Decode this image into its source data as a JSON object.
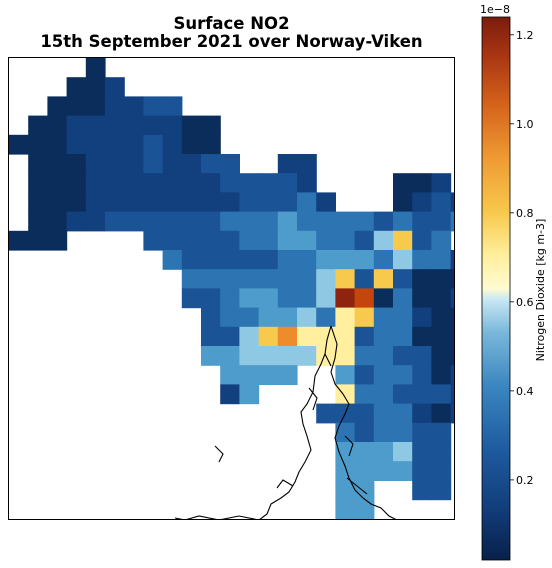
{
  "chart_data": {
    "type": "heatmap",
    "title_line1": "Surface NO2",
    "title_line2": "15th September 2021 over Norway-Viken",
    "colorbar": {
      "label": "Nitrogen Dioxide [kg m-3]",
      "exponent": "1e−8",
      "ticks": [
        0.2,
        0.4,
        0.6,
        0.8,
        1.0,
        1.2
      ],
      "tick_labels": [
        "0.2",
        "0.4",
        "0.6",
        "0.8",
        "1.0",
        "1.2"
      ],
      "range": [
        0.02,
        1.24
      ]
    },
    "palette": {
      "c": "#0b2d5c",
      "d": "#123f7d",
      "m": "#1b5496",
      "b": "#2d74b3",
      "l": "#4e9ccb",
      "s": "#8fc8e2",
      "p": "#dcf2fa",
      "y": "#ffef9e",
      "g": "#f7c94c",
      "o": "#ee8c2c",
      "r": "#c4460d",
      "x": "#8e2410"
    },
    "grid_rows": [
      "....c...................",
      "...ccd..................",
      "..cccddmm...............",
      ".ccddddddcc.............",
      "cccddddmdcc.............",
      ".cccdddmddmm..dd........",
      ".cccdddddddmmmmd....ccd.",
      ".cccddddddddmmmbd...cdmd",
      ".ccddmmmmmmbbblbbbbmbmmb",
      "ccc....mmmmmbbllbbmsgmb.",
      "........bmmmmmbblllbsbbdc",
      ".........bbbbbbbsgmgmccc",
      ".........mmbllbbsxrcbccd",
      "..........mbbllsbygbbdcc",
      "..........mmsgoyyymbbcccd",
      "..........llssssyybbmmcc",
      "...........llll..lmbbmcd",
      "...........dl....ybbmmmd",
      "................mmmbbdcd",
      ".................bmbbmm.",
      ".................lllsmm.",
      ".................llllmm.",
      ".................ll..mm.",
      ".................ll....."
    ],
    "legend": [
      {
        "key": "c",
        "value": 0.03
      },
      {
        "key": "d",
        "value": 0.1
      },
      {
        "key": "m",
        "value": 0.2
      },
      {
        "key": "b",
        "value": 0.3
      },
      {
        "key": "l",
        "value": 0.42
      },
      {
        "key": "s",
        "value": 0.52
      },
      {
        "key": "p",
        "value": 0.6
      },
      {
        "key": "y",
        "value": 0.72
      },
      {
        "key": "g",
        "value": 0.82
      },
      {
        "key": "o",
        "value": 0.95
      },
      {
        "key": "r",
        "value": 1.05
      },
      {
        "key": "x",
        "value": 1.15
      }
    ]
  }
}
